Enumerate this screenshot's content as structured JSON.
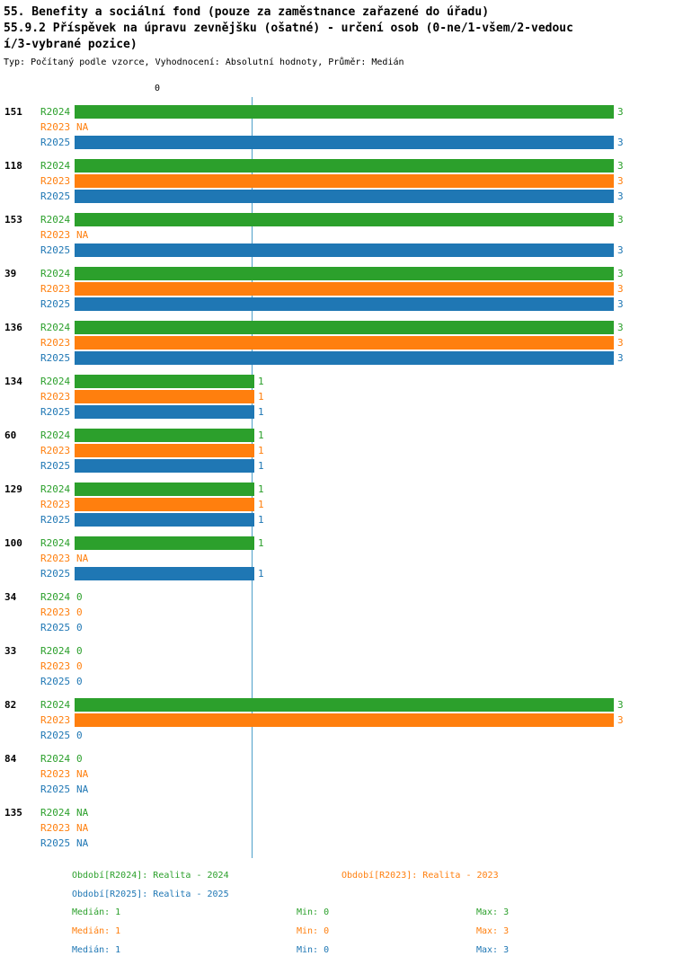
{
  "chart_data": {
    "type": "bar",
    "orientation": "horizontal",
    "title": {
      "line1": "55. Benefity a sociální fond (pouze za zaměstnance zařazené do úřadu)",
      "line2": "55.9.2 Příspěvek na úpravu zevnějšku (ošatné) - určení osob (0-ne/1-všem/2-vedouc",
      "line3": "í/3-vybrané pozice)",
      "meta": "Typ: Počítaný podle vzorce, Vyhodnocení: Absolutní hodnoty, Průměr: Medián"
    },
    "x_axis": {
      "min": 0,
      "max": 3,
      "top_tick_label": "0"
    },
    "median_reference_line": {
      "value": 1,
      "color": "#4e9fca"
    },
    "series": [
      {
        "name": "R2024",
        "color": "#2ca02c"
      },
      {
        "name": "R2023",
        "color": "#ff7f0e"
      },
      {
        "name": "R2025",
        "color": "#1f77b4"
      }
    ],
    "groups": [
      {
        "id": "151",
        "values": {
          "R2024": 3,
          "R2023": "NA",
          "R2025": 3
        }
      },
      {
        "id": "118",
        "values": {
          "R2024": 3,
          "R2023": 3,
          "R2025": 3
        }
      },
      {
        "id": "153",
        "values": {
          "R2024": 3,
          "R2023": "NA",
          "R2025": 3
        }
      },
      {
        "id": "39",
        "values": {
          "R2024": 3,
          "R2023": 3,
          "R2025": 3
        }
      },
      {
        "id": "136",
        "values": {
          "R2024": 3,
          "R2023": 3,
          "R2025": 3
        }
      },
      {
        "id": "134",
        "values": {
          "R2024": 1,
          "R2023": 1,
          "R2025": 1
        }
      },
      {
        "id": "60",
        "values": {
          "R2024": 1,
          "R2023": 1,
          "R2025": 1
        }
      },
      {
        "id": "129",
        "values": {
          "R2024": 1,
          "R2023": 1,
          "R2025": 1
        }
      },
      {
        "id": "100",
        "values": {
          "R2024": 1,
          "R2023": "NA",
          "R2025": 1
        }
      },
      {
        "id": "34",
        "values": {
          "R2024": 0,
          "R2023": 0,
          "R2025": 0
        }
      },
      {
        "id": "33",
        "values": {
          "R2024": 0,
          "R2023": 0,
          "R2025": 0
        }
      },
      {
        "id": "82",
        "values": {
          "R2024": 3,
          "R2023": 3,
          "R2025": 0
        }
      },
      {
        "id": "84",
        "values": {
          "R2024": 0,
          "R2023": "NA",
          "R2025": "NA"
        }
      },
      {
        "id": "135",
        "values": {
          "R2024": "NA",
          "R2023": "NA",
          "R2025": "NA"
        }
      }
    ],
    "legend": [
      {
        "series": "R2024",
        "text": "Období[R2024]: Realita - 2024",
        "color": "#2ca02c"
      },
      {
        "series": "R2023",
        "text": "Období[R2023]: Realita - 2023",
        "color": "#ff7f0e"
      },
      {
        "series": "R2025",
        "text": "Období[R2025]: Realita - 2025",
        "color": "#1f77b4"
      }
    ],
    "stats": [
      {
        "series": "R2024",
        "color": "#2ca02c",
        "median": "Medián: 1",
        "min": "Min: 0",
        "max": "Max: 3"
      },
      {
        "series": "R2023",
        "color": "#ff7f0e",
        "median": "Medián: 1",
        "min": "Min: 0",
        "max": "Max: 3"
      },
      {
        "series": "R2025",
        "color": "#1f77b4",
        "median": "Medián: 1",
        "min": "Min: 0",
        "max": "Max: 3"
      }
    ]
  }
}
